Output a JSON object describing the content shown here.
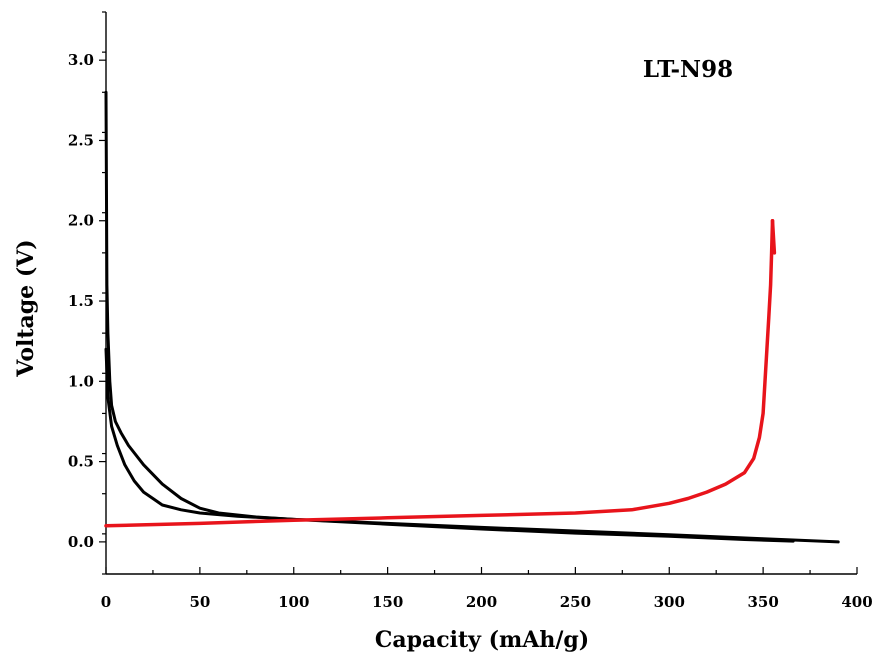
{
  "chart_data": {
    "type": "line",
    "title": "",
    "xlabel": "Capacity (mAh/g)",
    "ylabel": "Voltage (V)",
    "annotation": "LT-N98",
    "xlim": [
      0,
      400
    ],
    "ylim": [
      -0.2,
      3.3
    ],
    "x_ticks": [
      0,
      50,
      100,
      150,
      200,
      250,
      300,
      350,
      400
    ],
    "x_tick_labels": [
      "0",
      "50",
      "100",
      "150",
      "200",
      "250",
      "300",
      "350",
      "400"
    ],
    "y_ticks": [
      0.0,
      0.5,
      1.0,
      1.5,
      2.0,
      2.5,
      3.0
    ],
    "y_tick_labels": [
      "0.0",
      "0.5",
      "1.0",
      "1.5",
      "2.0",
      "2.5",
      "3.0"
    ],
    "grid": false,
    "legend": "none",
    "series": [
      {
        "color": "#000000",
        "role": "discharge-1",
        "points": [
          [
            0,
            2.8
          ],
          [
            0.5,
            1.6
          ],
          [
            1,
            1.3
          ],
          [
            2,
            1.0
          ],
          [
            3,
            0.85
          ],
          [
            5,
            0.75
          ],
          [
            8,
            0.68
          ],
          [
            12,
            0.6
          ],
          [
            20,
            0.48
          ],
          [
            30,
            0.36
          ],
          [
            40,
            0.27
          ],
          [
            50,
            0.21
          ],
          [
            60,
            0.18
          ],
          [
            80,
            0.155
          ],
          [
            100,
            0.14
          ],
          [
            150,
            0.115
          ],
          [
            200,
            0.09
          ],
          [
            250,
            0.068
          ],
          [
            300,
            0.045
          ],
          [
            350,
            0.02
          ],
          [
            390,
            0.0
          ]
        ]
      },
      {
        "color": "#000000",
        "role": "discharge-2",
        "points": [
          [
            0,
            1.2
          ],
          [
            1,
            0.9
          ],
          [
            3,
            0.72
          ],
          [
            6,
            0.6
          ],
          [
            10,
            0.48
          ],
          [
            15,
            0.38
          ],
          [
            20,
            0.31
          ],
          [
            25,
            0.27
          ],
          [
            30,
            0.23
          ],
          [
            40,
            0.2
          ],
          [
            50,
            0.18
          ],
          [
            70,
            0.16
          ],
          [
            100,
            0.14
          ],
          [
            150,
            0.11
          ],
          [
            200,
            0.08
          ],
          [
            250,
            0.055
          ],
          [
            300,
            0.035
          ],
          [
            340,
            0.015
          ],
          [
            366,
            0.005
          ]
        ]
      },
      {
        "color": "#e8141b",
        "role": "charge",
        "points": [
          [
            0,
            0.1
          ],
          [
            50,
            0.115
          ],
          [
            100,
            0.135
          ],
          [
            150,
            0.15
          ],
          [
            200,
            0.165
          ],
          [
            250,
            0.18
          ],
          [
            280,
            0.2
          ],
          [
            300,
            0.24
          ],
          [
            310,
            0.27
          ],
          [
            320,
            0.31
          ],
          [
            330,
            0.36
          ],
          [
            340,
            0.43
          ],
          [
            345,
            0.52
          ],
          [
            348,
            0.65
          ],
          [
            350,
            0.8
          ],
          [
            351,
            1.0
          ],
          [
            352,
            1.2
          ],
          [
            353,
            1.4
          ],
          [
            354,
            1.6
          ],
          [
            354.5,
            1.8
          ],
          [
            355,
            2.0
          ]
        ]
      },
      {
        "color": "#e8141b",
        "role": "charge-end-tail",
        "points": [
          [
            355,
            2.0
          ],
          [
            356,
            1.8
          ]
        ]
      }
    ]
  }
}
